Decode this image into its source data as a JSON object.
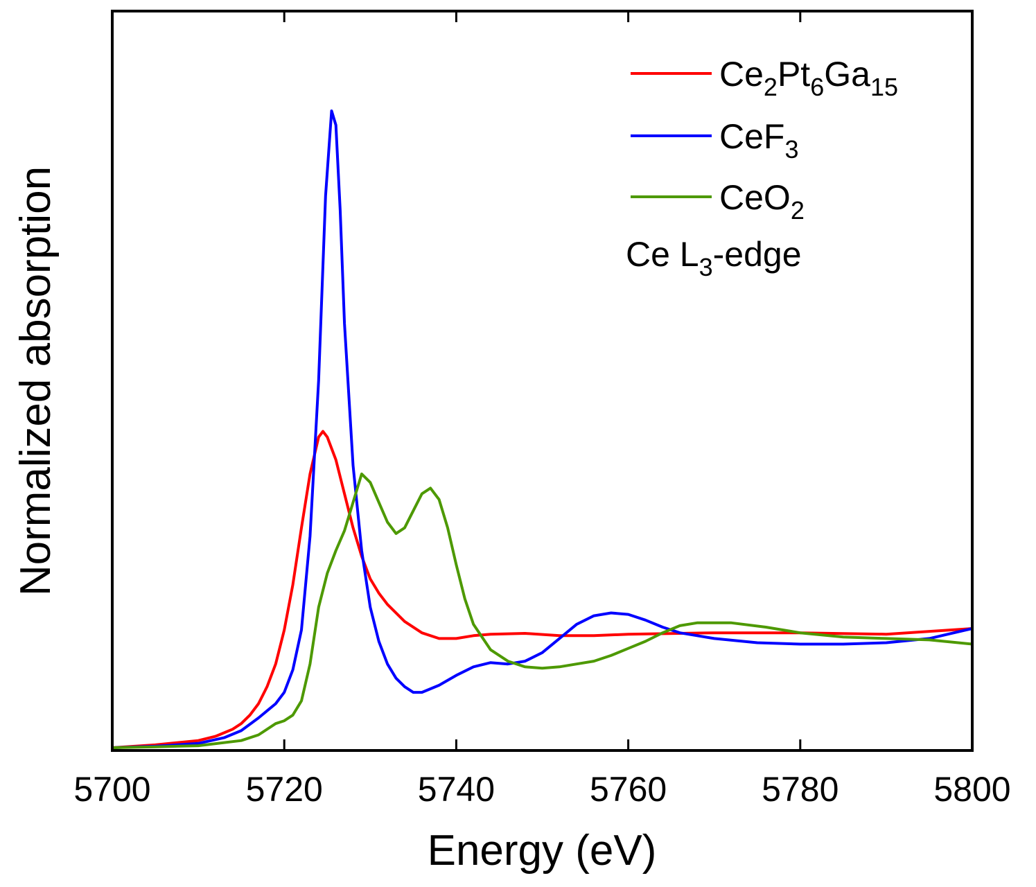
{
  "chart_data": {
    "type": "line",
    "title": "",
    "xlabel": "Energy (eV)",
    "ylabel": "Normalized absorption",
    "xlim": [
      5700,
      5800
    ],
    "ylim": [
      0,
      2.25
    ],
    "x_ticks": [
      5700,
      5720,
      5740,
      5760,
      5780,
      5800
    ],
    "x_tick_labels": [
      "5700",
      "5720",
      "5740",
      "5760",
      "5780",
      "5800"
    ],
    "y_ticks_shown": false,
    "grid": false,
    "legend_position": "top-right",
    "annotation": {
      "main": "Ce L",
      "sub": "3",
      "suffix": "-edge"
    },
    "series": [
      {
        "name": "Ce2Pt6Ga15",
        "label_parts": [
          {
            "t": "Ce",
            "sub": false
          },
          {
            "t": "2",
            "sub": true
          },
          {
            "t": "Pt",
            "sub": false
          },
          {
            "t": "6",
            "sub": true
          },
          {
            "t": "Ga",
            "sub": false
          },
          {
            "t": "15",
            "sub": true
          }
        ],
        "color": "#ff0000",
        "points": [
          [
            5700,
            0.005
          ],
          [
            5705,
            0.015
          ],
          [
            5710,
            0.03
          ],
          [
            5712,
            0.045
          ],
          [
            5714,
            0.07
          ],
          [
            5715,
            0.09
          ],
          [
            5716,
            0.12
          ],
          [
            5717,
            0.16
          ],
          [
            5718,
            0.22
          ],
          [
            5719,
            0.3
          ],
          [
            5720,
            0.42
          ],
          [
            5721,
            0.58
          ],
          [
            5722,
            0.78
          ],
          [
            5723,
            0.97
          ],
          [
            5724,
            1.1
          ],
          [
            5724.5,
            1.12
          ],
          [
            5725,
            1.1
          ],
          [
            5726,
            1.02
          ],
          [
            5727,
            0.9
          ],
          [
            5728,
            0.78
          ],
          [
            5729,
            0.68
          ],
          [
            5730,
            0.6
          ],
          [
            5731,
            0.55
          ],
          [
            5732,
            0.51
          ],
          [
            5734,
            0.45
          ],
          [
            5736,
            0.41
          ],
          [
            5738,
            0.39
          ],
          [
            5740,
            0.39
          ],
          [
            5742,
            0.4
          ],
          [
            5744,
            0.405
          ],
          [
            5748,
            0.408
          ],
          [
            5752,
            0.4
          ],
          [
            5756,
            0.4
          ],
          [
            5760,
            0.405
          ],
          [
            5770,
            0.41
          ],
          [
            5780,
            0.41
          ],
          [
            5790,
            0.405
          ],
          [
            5800,
            0.425
          ]
        ]
      },
      {
        "name": "CeF3",
        "label_parts": [
          {
            "t": "CeF",
            "sub": false
          },
          {
            "t": "3",
            "sub": true
          }
        ],
        "color": "#0000ff",
        "points": [
          [
            5700,
            0.005
          ],
          [
            5705,
            0.01
          ],
          [
            5710,
            0.02
          ],
          [
            5713,
            0.04
          ],
          [
            5715,
            0.065
          ],
          [
            5717,
            0.11
          ],
          [
            5719,
            0.16
          ],
          [
            5720,
            0.2
          ],
          [
            5721,
            0.28
          ],
          [
            5722,
            0.42
          ],
          [
            5723,
            0.75
          ],
          [
            5724,
            1.3
          ],
          [
            5724.8,
            1.95
          ],
          [
            5725.5,
            2.25
          ],
          [
            5726,
            2.2
          ],
          [
            5726.5,
            1.9
          ],
          [
            5727,
            1.5
          ],
          [
            5728,
            1.0
          ],
          [
            5729,
            0.7
          ],
          [
            5730,
            0.5
          ],
          [
            5731,
            0.38
          ],
          [
            5732,
            0.3
          ],
          [
            5733,
            0.25
          ],
          [
            5734,
            0.22
          ],
          [
            5735,
            0.2
          ],
          [
            5736,
            0.2
          ],
          [
            5738,
            0.225
          ],
          [
            5740,
            0.26
          ],
          [
            5742,
            0.29
          ],
          [
            5744,
            0.305
          ],
          [
            5746,
            0.3
          ],
          [
            5748,
            0.31
          ],
          [
            5750,
            0.34
          ],
          [
            5752,
            0.39
          ],
          [
            5754,
            0.44
          ],
          [
            5756,
            0.47
          ],
          [
            5758,
            0.48
          ],
          [
            5760,
            0.475
          ],
          [
            5762,
            0.455
          ],
          [
            5764,
            0.43
          ],
          [
            5766,
            0.41
          ],
          [
            5770,
            0.39
          ],
          [
            5775,
            0.375
          ],
          [
            5780,
            0.37
          ],
          [
            5785,
            0.37
          ],
          [
            5790,
            0.375
          ],
          [
            5795,
            0.39
          ],
          [
            5800,
            0.425
          ]
        ]
      },
      {
        "name": "CeO2",
        "label_parts": [
          {
            "t": "CeO",
            "sub": false
          },
          {
            "t": "2",
            "sub": true
          }
        ],
        "color": "#4d9900",
        "points": [
          [
            5700,
            0.005
          ],
          [
            5705,
            0.008
          ],
          [
            5710,
            0.012
          ],
          [
            5715,
            0.03
          ],
          [
            5717,
            0.05
          ],
          [
            5719,
            0.09
          ],
          [
            5720,
            0.1
          ],
          [
            5721,
            0.12
          ],
          [
            5722,
            0.17
          ],
          [
            5723,
            0.3
          ],
          [
            5724,
            0.5
          ],
          [
            5725,
            0.62
          ],
          [
            5726,
            0.7
          ],
          [
            5727,
            0.77
          ],
          [
            5728,
            0.87
          ],
          [
            5729,
            0.97
          ],
          [
            5730,
            0.94
          ],
          [
            5731,
            0.87
          ],
          [
            5732,
            0.8
          ],
          [
            5733,
            0.76
          ],
          [
            5734,
            0.78
          ],
          [
            5735,
            0.84
          ],
          [
            5736,
            0.9
          ],
          [
            5737,
            0.92
          ],
          [
            5738,
            0.88
          ],
          [
            5739,
            0.78
          ],
          [
            5740,
            0.65
          ],
          [
            5741,
            0.53
          ],
          [
            5742,
            0.44
          ],
          [
            5744,
            0.35
          ],
          [
            5746,
            0.31
          ],
          [
            5748,
            0.29
          ],
          [
            5750,
            0.285
          ],
          [
            5752,
            0.29
          ],
          [
            5754,
            0.3
          ],
          [
            5756,
            0.31
          ],
          [
            5758,
            0.33
          ],
          [
            5760,
            0.355
          ],
          [
            5762,
            0.38
          ],
          [
            5764,
            0.41
          ],
          [
            5766,
            0.435
          ],
          [
            5768,
            0.445
          ],
          [
            5772,
            0.445
          ],
          [
            5776,
            0.43
          ],
          [
            5780,
            0.41
          ],
          [
            5785,
            0.395
          ],
          [
            5790,
            0.39
          ],
          [
            5795,
            0.385
          ],
          [
            5800,
            0.37
          ]
        ]
      }
    ]
  }
}
